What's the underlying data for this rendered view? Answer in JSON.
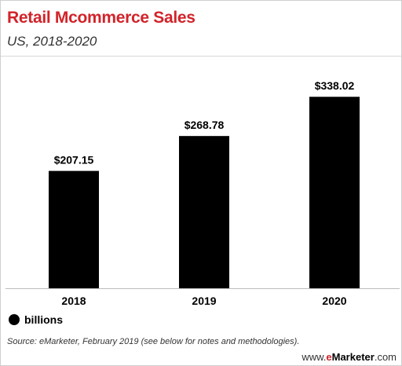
{
  "header": {
    "title": "Retail Mcommerce Sales",
    "subtitle": "US, 2018-2020"
  },
  "chart_data": {
    "type": "bar",
    "title": "Retail Mcommerce Sales",
    "subtitle": "US, 2018-2020",
    "categories": [
      "2018",
      "2019",
      "2020"
    ],
    "series": [
      {
        "name": "billions",
        "values": [
          207.15,
          268.78,
          338.02
        ]
      }
    ],
    "data_labels": [
      "$207.15",
      "$268.78",
      "$338.02"
    ],
    "xlabel": "",
    "ylabel": "",
    "ylim": [
      0,
      355
    ],
    "grid": false,
    "legend_position": "bottom-left",
    "bar_color": "#000000"
  },
  "legend": {
    "label": "billions"
  },
  "footer": {
    "source": "Source: eMarketer, February 2019 (see below for notes and methodologies).",
    "brand_prefix": "www.",
    "brand_e": "e",
    "brand_name": "Marketer",
    "brand_suffix": ".com"
  },
  "colors": {
    "title": "#d2232a",
    "bars": "#000000",
    "text": "#333333"
  }
}
